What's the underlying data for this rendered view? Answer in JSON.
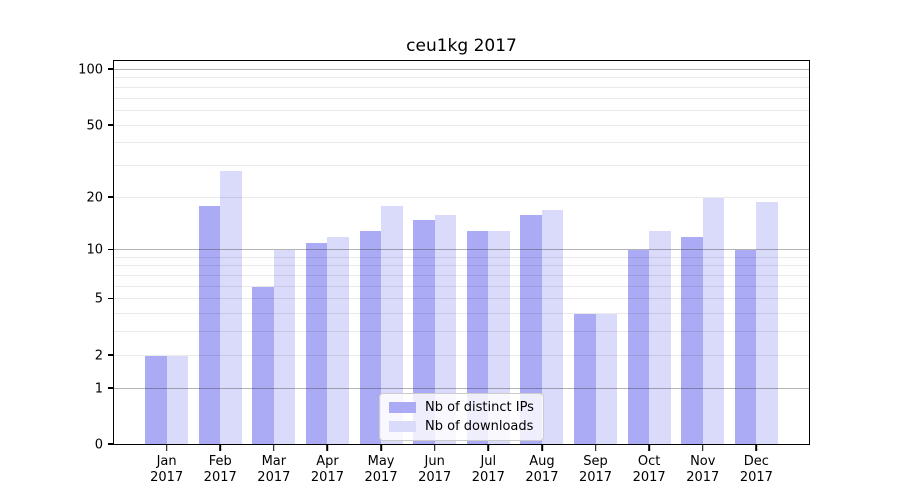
{
  "title": "ceu1kg 2017",
  "legend": {
    "items": [
      {
        "label": "Nb of distinct IPs",
        "color": "#aaaaf5"
      },
      {
        "label": "Nb of downloads",
        "color": "#dadafb"
      }
    ]
  },
  "y_axis": {
    "tick_values": [
      100,
      50,
      20,
      10,
      5,
      2,
      1,
      0
    ],
    "tick_labels": [
      "100",
      "50",
      "20",
      "10",
      "5",
      "2",
      "1",
      "0"
    ]
  },
  "x_axis": {
    "months": [
      "Jan",
      "Feb",
      "Mar",
      "Apr",
      "May",
      "Jun",
      "Jul",
      "Aug",
      "Sep",
      "Oct",
      "Nov",
      "Dec"
    ],
    "year": "2017"
  },
  "chart_data": {
    "type": "bar",
    "title": "ceu1kg 2017",
    "categories": [
      "Jan 2017",
      "Feb 2017",
      "Mar 2017",
      "Apr 2017",
      "May 2017",
      "Jun 2017",
      "Jul 2017",
      "Aug 2017",
      "Sep 2017",
      "Oct 2017",
      "Nov 2017",
      "Dec 2017"
    ],
    "series": [
      {
        "name": "Nb of distinct IPs",
        "color": "#aaaaf5",
        "values": [
          2,
          18,
          6,
          11,
          13,
          15,
          13,
          16,
          4,
          10,
          12,
          10
        ]
      },
      {
        "name": "Nb of downloads",
        "color": "#dadafb",
        "values": [
          2,
          28,
          10,
          12,
          18,
          16,
          13,
          17,
          4,
          13,
          20,
          19
        ]
      }
    ],
    "yscale": "log1p",
    "ylim": [
      0,
      113
    ],
    "yticks": [
      0,
      1,
      2,
      5,
      10,
      20,
      50,
      100
    ],
    "grid": true,
    "legend_position": "lower center"
  }
}
